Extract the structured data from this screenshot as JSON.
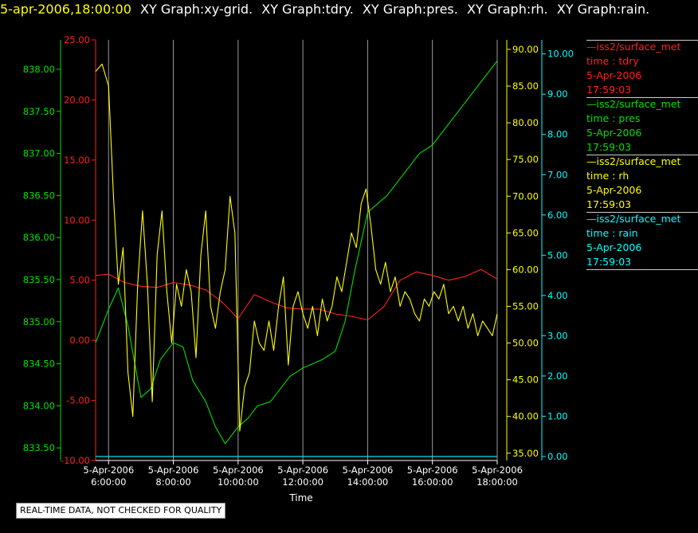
{
  "header": {
    "timestamp": "5-apr-2006,18:00:00",
    "graphs": [
      "XY Graph:xy-grid.",
      "XY Graph:tdry.",
      "XY Graph:pres.",
      "XY Graph:rh.",
      "XY Graph:rain."
    ]
  },
  "legend": [
    {
      "source": "iss2/surface_met",
      "var": "time : tdry",
      "date": "5-Apr-2006",
      "time": "17:59:03",
      "color": "#ff2020"
    },
    {
      "source": "iss2/surface_met",
      "var": "time : pres",
      "date": "5-Apr-2006",
      "time": "17:59:03",
      "color": "#00e000"
    },
    {
      "source": "iss2/surface_met",
      "var": "time : rh",
      "date": "5-Apr-2006",
      "time": "17:59:03",
      "color": "#ffff00"
    },
    {
      "source": "iss2/surface_met",
      "var": "time : rain",
      "date": "5-Apr-2006",
      "time": "17:59:03",
      "color": "#00ffff"
    }
  ],
  "footer": {
    "quality_note": "REAL-TIME DATA, NOT CHECKED FOR QUALITY"
  },
  "chart_data": {
    "type": "line",
    "xlabel": "Time",
    "x_ticks": [
      {
        "date": "5-Apr-2006",
        "time": "6:00:00",
        "hour": 6
      },
      {
        "date": "5-Apr-2006",
        "time": "8:00:00",
        "hour": 8
      },
      {
        "date": "5-Apr-2006",
        "time": "10:00:00",
        "hour": 10
      },
      {
        "date": "5-Apr-2006",
        "time": "12:00:00",
        "hour": 12
      },
      {
        "date": "5-Apr-2006",
        "time": "14:00:00",
        "hour": 14
      },
      {
        "date": "5-Apr-2006",
        "time": "16:00:00",
        "hour": 16
      },
      {
        "date": "5-Apr-2006",
        "time": "18:00:00",
        "hour": 18
      }
    ],
    "x_range_hours": [
      5.6,
      18.0
    ],
    "grid": "vertical",
    "axes": {
      "pres": {
        "range": [
          833.35,
          838.35
        ],
        "ticks": [
          "833.50",
          "834.00",
          "834.50",
          "835.00",
          "835.50",
          "836.00",
          "836.50",
          "837.00",
          "837.50",
          "838.00"
        ],
        "color": "#00e000",
        "side": "left-outer"
      },
      "tdry": {
        "range": [
          -10,
          25
        ],
        "ticks": [
          "-10.00",
          "-5.00",
          "0.00",
          "5.00",
          "10.00",
          "15.00",
          "20.00",
          "25.00"
        ],
        "color": "#ff2020",
        "side": "left-inner"
      },
      "rh": {
        "range": [
          34,
          91.3
        ],
        "ticks": [
          "35.00",
          "40.00",
          "45.00",
          "50.00",
          "55.00",
          "60.00",
          "65.00",
          "70.00",
          "75.00",
          "80.00",
          "85.00",
          "90.00"
        ],
        "color": "#ffff00",
        "side": "right-inner"
      },
      "rain": {
        "range": [
          -0.1,
          10.35
        ],
        "ticks": [
          "0.00",
          "1.00",
          "2.00",
          "3.00",
          "4.00",
          "5.00",
          "6.00",
          "7.00",
          "8.00",
          "9.00",
          "10.00"
        ],
        "color": "#00ffff",
        "side": "right-outer"
      }
    },
    "series": [
      {
        "name": "tdry",
        "axis": "tdry",
        "color": "#ff2020",
        "x": [
          5.6,
          6.0,
          6.5,
          7.0,
          7.5,
          8.0,
          8.5,
          9.0,
          9.5,
          10.0,
          10.5,
          11.0,
          11.5,
          12.0,
          12.5,
          13.0,
          13.5,
          14.0,
          14.5,
          15.0,
          15.5,
          16.0,
          16.5,
          17.0,
          17.5,
          18.0
        ],
        "y": [
          5.4,
          5.5,
          4.8,
          4.5,
          4.4,
          4.8,
          4.6,
          4.2,
          3.2,
          1.8,
          3.8,
          3.2,
          2.7,
          2.6,
          2.6,
          2.2,
          2.0,
          1.7,
          2.8,
          5.0,
          5.7,
          5.4,
          5.0,
          5.3,
          5.9,
          5.1
        ]
      },
      {
        "name": "pres",
        "axis": "pres",
        "color": "#00e000",
        "x": [
          5.6,
          6.0,
          6.3,
          6.6,
          7.0,
          7.3,
          7.6,
          8.0,
          8.3,
          8.6,
          9.0,
          9.3,
          9.6,
          10.0,
          10.3,
          10.6,
          11.0,
          11.3,
          11.6,
          12.0,
          12.3,
          12.6,
          13.0,
          13.3,
          13.6,
          14.0,
          14.3,
          14.6,
          15.0,
          15.3,
          15.6,
          16.0,
          16.3,
          16.6,
          17.0,
          17.3,
          17.6,
          18.0
        ],
        "y": [
          834.75,
          835.15,
          835.4,
          834.95,
          834.1,
          834.2,
          834.55,
          834.75,
          834.7,
          834.3,
          834.05,
          833.75,
          833.55,
          833.75,
          833.85,
          834.0,
          834.05,
          834.2,
          834.35,
          834.45,
          834.5,
          834.55,
          834.65,
          835.0,
          835.6,
          836.3,
          836.4,
          836.5,
          836.7,
          836.85,
          837.0,
          837.1,
          837.25,
          837.4,
          837.6,
          837.75,
          837.9,
          838.1
        ]
      },
      {
        "name": "rh",
        "axis": "rh",
        "color": "#ffff00",
        "x": [
          5.6,
          5.8,
          6.0,
          6.15,
          6.3,
          6.45,
          6.6,
          6.75,
          6.9,
          7.05,
          7.2,
          7.35,
          7.5,
          7.65,
          7.8,
          7.95,
          8.1,
          8.25,
          8.4,
          8.55,
          8.7,
          8.85,
          9.0,
          9.15,
          9.3,
          9.45,
          9.6,
          9.75,
          9.9,
          10.05,
          10.2,
          10.35,
          10.5,
          10.65,
          10.8,
          10.95,
          11.1,
          11.25,
          11.4,
          11.55,
          11.7,
          11.85,
          12.0,
          12.15,
          12.3,
          12.45,
          12.6,
          12.75,
          12.9,
          13.05,
          13.2,
          13.35,
          13.5,
          13.65,
          13.8,
          13.95,
          14.1,
          14.25,
          14.4,
          14.55,
          14.7,
          14.85,
          15.0,
          15.15,
          15.3,
          15.45,
          15.6,
          15.75,
          15.9,
          16.05,
          16.2,
          16.35,
          16.5,
          16.65,
          16.8,
          16.95,
          17.1,
          17.25,
          17.4,
          17.55,
          17.7,
          17.85,
          18.0
        ],
        "y": [
          87,
          88,
          85,
          70,
          58,
          63,
          46,
          40,
          58,
          68,
          58,
          42,
          62,
          68,
          57,
          50,
          58,
          55,
          60,
          57,
          48,
          62,
          68,
          55,
          52,
          57,
          60,
          70,
          65,
          38,
          44,
          46,
          53,
          50,
          49,
          53,
          49,
          55,
          59,
          47,
          55,
          57,
          54,
          52,
          55,
          51,
          56,
          53,
          55,
          59,
          57,
          61,
          65,
          63,
          69,
          71,
          66,
          60,
          58,
          61,
          57,
          59,
          55,
          57,
          56,
          54,
          53,
          56,
          55,
          57,
          56,
          58,
          54,
          55,
          53,
          55,
          52,
          54,
          51,
          53,
          52,
          51,
          54
        ]
      },
      {
        "name": "rain",
        "axis": "rain",
        "color": "#00ffff",
        "x": [
          5.6,
          18.0
        ],
        "y": [
          0,
          0
        ]
      }
    ]
  }
}
